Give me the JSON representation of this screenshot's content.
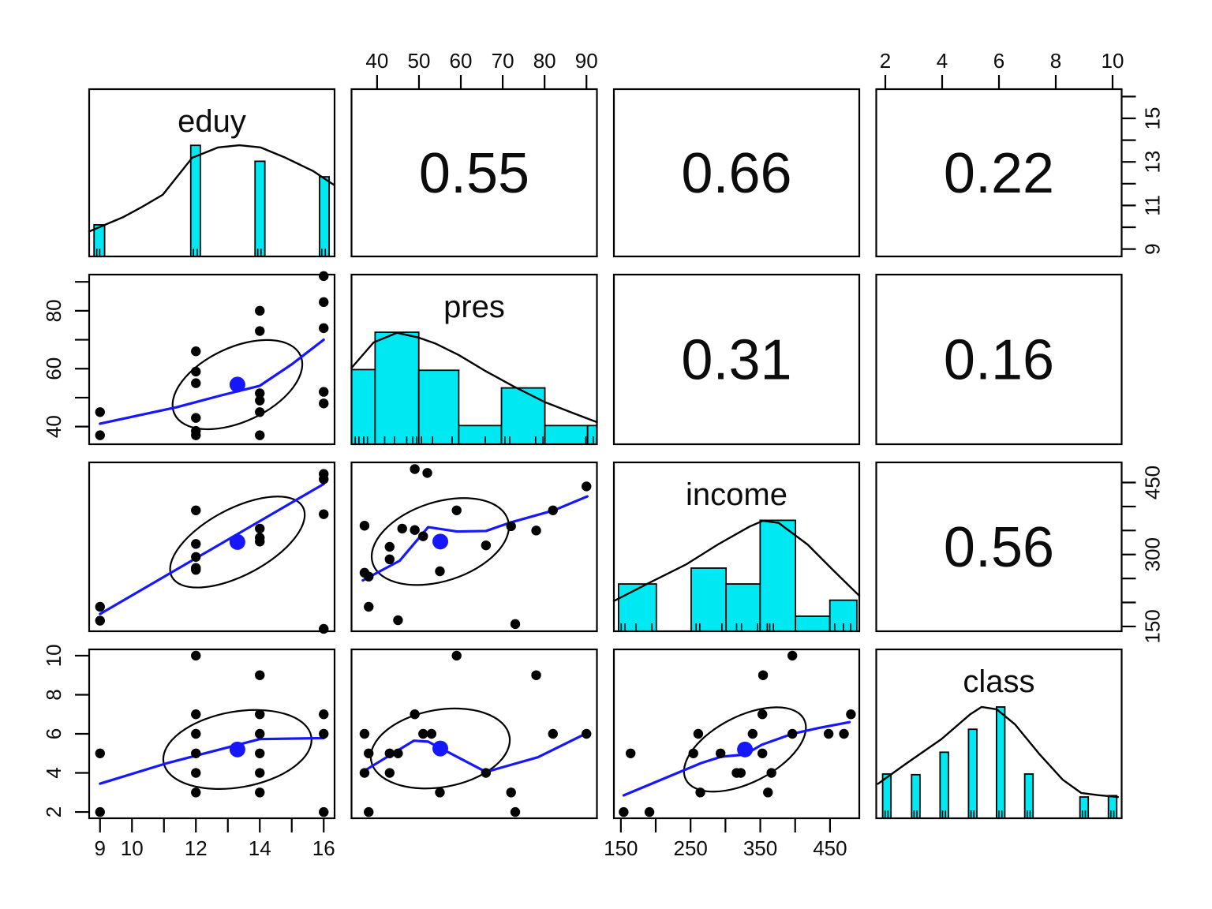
{
  "figure_title": "scatterplot-matrix",
  "chart_data": {
    "type": "scatter",
    "subtype": "scatterplot-matrix-pairs-panels",
    "variables": [
      "eduy",
      "pres",
      "income",
      "class"
    ],
    "diag_labels": {
      "eduy": "eduy",
      "pres": "pres",
      "income": "income",
      "class": "class"
    },
    "correlations": {
      "eduy_pres": "0.55",
      "eduy_income": "0.66",
      "eduy_class": "0.22",
      "pres_income": "0.31",
      "pres_class": "0.16",
      "income_class": "0.56"
    },
    "colors": {
      "histogram_fill": "#00e8f2",
      "histogram_edge": "#000000",
      "density_line": "#000000",
      "smooth_line": "#1616ff",
      "mean_dot": "#1616ff",
      "point": "#000000",
      "ellipse": "#000000",
      "border": "#000000",
      "background": "#ffffff"
    },
    "axis_ranges": {
      "eduy": [
        8.66,
        16.34
      ],
      "pres": [
        33.9,
        92.5
      ],
      "income": [
        140,
        492
      ],
      "class": [
        1.68,
        10.32
      ]
    },
    "edge_axes": [
      {
        "side": "top",
        "col": 1,
        "var": "pres",
        "ticks": [
          40,
          50,
          60,
          70,
          80,
          90
        ],
        "labels": [
          "40",
          "50",
          "60",
          "70",
          "80",
          "90"
        ]
      },
      {
        "side": "top",
        "col": 3,
        "var": "class",
        "ticks": [
          2,
          4,
          6,
          8,
          10
        ],
        "labels": [
          "2",
          "4",
          "6",
          "8",
          "10"
        ]
      },
      {
        "side": "right",
        "row": 0,
        "var": "eduy",
        "ticks": [
          9,
          10,
          11,
          12,
          13,
          14,
          15,
          16
        ],
        "labels": [
          "9",
          "",
          "11",
          "",
          "13",
          "",
          "15",
          ""
        ]
      },
      {
        "side": "right",
        "row": 2,
        "var": "income",
        "ticks": [
          150,
          200,
          250,
          300,
          350,
          400,
          450
        ],
        "labels": [
          "150",
          "",
          "",
          "300",
          "",
          "",
          "450"
        ]
      },
      {
        "side": "left",
        "row": 1,
        "var": "pres",
        "ticks": [
          40,
          50,
          60,
          70,
          80,
          90
        ],
        "labels": [
          "40",
          "",
          "60",
          "",
          "80",
          ""
        ]
      },
      {
        "side": "left",
        "row": 3,
        "var": "class",
        "ticks": [
          2,
          4,
          6,
          8,
          10
        ],
        "labels": [
          "2",
          "4",
          "6",
          "8",
          "10"
        ]
      },
      {
        "side": "bottom",
        "col": 0,
        "var": "eduy",
        "ticks": [
          9,
          10,
          11,
          12,
          13,
          14,
          15,
          16
        ],
        "labels": [
          "9",
          "10",
          "",
          "12",
          "",
          "14",
          "",
          "16"
        ]
      },
      {
        "side": "bottom",
        "col": 2,
        "var": "income",
        "ticks": [
          150,
          200,
          250,
          300,
          350,
          400,
          450
        ],
        "labels": [
          "150",
          "",
          "250",
          "",
          "350",
          "",
          "450"
        ]
      }
    ],
    "diagonal": {
      "eduy": {
        "bars": [
          [
            0.02,
            0.063,
            0.189
          ],
          [
            0.414,
            0.453,
            0.664
          ],
          [
            0.676,
            0.716,
            0.569
          ],
          [
            0.939,
            0.978,
            0.476
          ]
        ],
        "density": [
          [
            0,
            0.149
          ],
          [
            0.14,
            0.236
          ],
          [
            0.22,
            0.3
          ],
          [
            0.3,
            0.369
          ],
          [
            0.42,
            0.59
          ],
          [
            0.526,
            0.652
          ],
          [
            0.612,
            0.665
          ],
          [
            0.698,
            0.652
          ],
          [
            0.8,
            0.59
          ],
          [
            0.912,
            0.511
          ],
          [
            1,
            0.425
          ]
        ],
        "rug": [
          0.031,
          0.043,
          0.425,
          0.44,
          0.687,
          0.7,
          0.948,
          0.962
        ]
      },
      "pres": {
        "bars": [
          [
            0,
            0.096,
            0.44
          ],
          [
            0.096,
            0.274,
            0.66
          ],
          [
            0.274,
            0.437,
            0.436
          ],
          [
            0.437,
            0.611,
            0.11
          ],
          [
            0.611,
            0.788,
            0.332
          ],
          [
            0.788,
            0.962,
            0.11
          ],
          [
            0.962,
            1,
            0.11
          ]
        ],
        "density": [
          [
            0,
            0.45
          ],
          [
            0.09,
            0.6
          ],
          [
            0.185,
            0.657
          ],
          [
            0.27,
            0.63
          ],
          [
            0.34,
            0.595
          ],
          [
            0.437,
            0.526
          ],
          [
            0.544,
            0.433
          ],
          [
            0.662,
            0.34
          ],
          [
            0.79,
            0.247
          ],
          [
            0.908,
            0.181
          ],
          [
            1,
            0.13
          ]
        ],
        "rug": [
          0.015,
          0.03,
          0.05,
          0.065,
          0.135,
          0.175,
          0.225,
          0.25,
          0.265,
          0.285,
          0.33,
          0.41,
          0.545,
          0.625,
          0.645,
          0.75,
          0.78,
          0.955,
          0.985
        ]
      },
      "income": {
        "bars": [
          [
            0.019,
            0.173,
            0.28
          ],
          [
            0.315,
            0.457,
            0.374
          ],
          [
            0.457,
            0.596,
            0.28
          ],
          [
            0.596,
            0.74,
            0.657
          ],
          [
            0.74,
            0.88,
            0.089
          ],
          [
            0.88,
            0.99,
            0.184
          ]
        ],
        "density": [
          [
            0,
            0.179
          ],
          [
            0.135,
            0.28
          ],
          [
            0.296,
            0.397
          ],
          [
            0.424,
            0.514
          ],
          [
            0.553,
            0.62
          ],
          [
            0.607,
            0.654
          ],
          [
            0.671,
            0.642
          ],
          [
            0.789,
            0.514
          ],
          [
            0.896,
            0.358
          ],
          [
            1,
            0.21
          ]
        ],
        "rug": [
          0.03,
          0.045,
          0.09,
          0.155,
          0.335,
          0.35,
          0.44,
          0.5,
          0.52,
          0.585,
          0.625,
          0.635,
          0.65,
          0.74,
          0.9,
          0.935,
          0.965
        ]
      },
      "class": {
        "bars": [
          [
            0.026,
            0.06,
            0.262
          ],
          [
            0.144,
            0.178,
            0.258
          ],
          [
            0.26,
            0.294,
            0.391
          ],
          [
            0.376,
            0.41,
            0.527
          ],
          [
            0.49,
            0.524,
            0.659
          ],
          [
            0.605,
            0.639,
            0.262
          ],
          [
            0.83,
            0.864,
            0.126
          ],
          [
            0.946,
            0.98,
            0.134
          ]
        ],
        "density": [
          [
            0.007,
            0.204
          ],
          [
            0.127,
            0.329
          ],
          [
            0.266,
            0.469
          ],
          [
            0.384,
            0.617
          ],
          [
            0.429,
            0.659
          ],
          [
            0.491,
            0.645
          ],
          [
            0.566,
            0.555
          ],
          [
            0.663,
            0.383
          ],
          [
            0.76,
            0.228
          ],
          [
            0.835,
            0.15
          ],
          [
            0.904,
            0.137
          ],
          [
            0.985,
            0.126
          ]
        ],
        "rug": [
          0.036,
          0.048,
          0.154,
          0.166,
          0.27,
          0.282,
          0.386,
          0.398,
          0.5,
          0.512,
          0.615,
          0.627,
          0.84,
          0.852,
          0.956,
          0.968
        ]
      }
    },
    "scatter": {
      "pres_vs_eduy": {
        "xvar": "eduy",
        "yvar": "pres",
        "points": [
          [
            9,
            45
          ],
          [
            9,
            37
          ],
          [
            12,
            66
          ],
          [
            12,
            59
          ],
          [
            12,
            55
          ],
          [
            12,
            43
          ],
          [
            12,
            38.5
          ],
          [
            12,
            37
          ],
          [
            14,
            80
          ],
          [
            14,
            73
          ],
          [
            14,
            51.5
          ],
          [
            14,
            49
          ],
          [
            14,
            45
          ],
          [
            14,
            37
          ],
          [
            16,
            92
          ],
          [
            16,
            83
          ],
          [
            16,
            74
          ],
          [
            16,
            52
          ],
          [
            16,
            48
          ]
        ],
        "smooth": [
          [
            9,
            41
          ],
          [
            11.4,
            46.7
          ],
          [
            12.8,
            50.8
          ],
          [
            14,
            54.1
          ],
          [
            15,
            61.5
          ],
          [
            16,
            70
          ]
        ],
        "mean": [
          13.3,
          54.5
        ],
        "ellipse": {
          "a": 88,
          "b": 47,
          "angle": -25
        }
      },
      "income_vs_eduy": {
        "xvar": "eduy",
        "yvar": "income",
        "points": [
          [
            9,
            191
          ],
          [
            9,
            162
          ],
          [
            12,
            392
          ],
          [
            12,
            322
          ],
          [
            12,
            295
          ],
          [
            12,
            272
          ],
          [
            12,
            268
          ],
          [
            14,
            354
          ],
          [
            14,
            335
          ],
          [
            14,
            327
          ],
          [
            16,
            468
          ],
          [
            16,
            457
          ],
          [
            16,
            384
          ],
          [
            16,
            145
          ]
        ],
        "smooth": [
          [
            9,
            176
          ],
          [
            16,
            447
          ]
        ],
        "mean": [
          13.3,
          326
        ],
        "ellipse": {
          "a": 94,
          "b": 42,
          "angle": -28
        }
      },
      "class_vs_eduy": {
        "xvar": "eduy",
        "yvar": "class",
        "points": [
          [
            9,
            5
          ],
          [
            9,
            2
          ],
          [
            12,
            10
          ],
          [
            12,
            7
          ],
          [
            12,
            6
          ],
          [
            12,
            5
          ],
          [
            12,
            4
          ],
          [
            12,
            3
          ],
          [
            14,
            9
          ],
          [
            14,
            7
          ],
          [
            14,
            6
          ],
          [
            14,
            5
          ],
          [
            14,
            4
          ],
          [
            14,
            3
          ],
          [
            16,
            7
          ],
          [
            16,
            6
          ],
          [
            16,
            2
          ]
        ],
        "smooth": [
          [
            9,
            3.45
          ],
          [
            11.1,
            4.5
          ],
          [
            14,
            5.73
          ],
          [
            16,
            5.78
          ]
        ],
        "mean": [
          13.3,
          5.2
        ],
        "ellipse": {
          "a": 95,
          "b": 48,
          "angle": -10
        }
      },
      "income_vs_pres": {
        "xvar": "pres",
        "yvar": "income",
        "points": [
          [
            49,
            478
          ],
          [
            52,
            470
          ],
          [
            90,
            442
          ],
          [
            59,
            392
          ],
          [
            82,
            392
          ],
          [
            37,
            360
          ],
          [
            46,
            354
          ],
          [
            49,
            351
          ],
          [
            72,
            359
          ],
          [
            78,
            350
          ],
          [
            51,
            338
          ],
          [
            43,
            316
          ],
          [
            66,
            319
          ],
          [
            43,
            290
          ],
          [
            37,
            262
          ],
          [
            38,
            254
          ],
          [
            55,
            265
          ],
          [
            38,
            191
          ],
          [
            45,
            163
          ],
          [
            73,
            155
          ]
        ],
        "smooth": [
          [
            36.6,
            246
          ],
          [
            45.4,
            287
          ],
          [
            52.2,
            357
          ],
          [
            59.1,
            348
          ],
          [
            66,
            349
          ],
          [
            71.6,
            366
          ],
          [
            82.2,
            392
          ],
          [
            90.2,
            421
          ]
        ],
        "mean": [
          55.1,
          327
        ],
        "ellipse": {
          "a": 90,
          "b": 50,
          "angle": -18
        }
      },
      "class_vs_pres": {
        "xvar": "pres",
        "yvar": "class",
        "points": [
          [
            59,
            10
          ],
          [
            78,
            9
          ],
          [
            49,
            7
          ],
          [
            37,
            6
          ],
          [
            51,
            6
          ],
          [
            53,
            6
          ],
          [
            82,
            6
          ],
          [
            90,
            6
          ],
          [
            38,
            5
          ],
          [
            43,
            5
          ],
          [
            45,
            5
          ],
          [
            37,
            4
          ],
          [
            43,
            4
          ],
          [
            66,
            4
          ],
          [
            55,
            3
          ],
          [
            72,
            3
          ],
          [
            38,
            2
          ],
          [
            73,
            2
          ]
        ],
        "smooth": [
          [
            36.9,
            4.1
          ],
          [
            48.8,
            5.65
          ],
          [
            52.2,
            5.6
          ],
          [
            66,
            4.05
          ],
          [
            78.4,
            4.8
          ],
          [
            90.2,
            6.05
          ]
        ],
        "mean": [
          55.1,
          5.25
        ],
        "ellipse": {
          "a": 89,
          "b": 49,
          "angle": -10
        }
      },
      "class_vs_income": {
        "xvar": "income",
        "yvar": "class",
        "points": [
          [
            396,
            10
          ],
          [
            354,
            9
          ],
          [
            353,
            7
          ],
          [
            480,
            7
          ],
          [
            261,
            6
          ],
          [
            339,
            6
          ],
          [
            396,
            6
          ],
          [
            448,
            6
          ],
          [
            470,
            6
          ],
          [
            164,
            5
          ],
          [
            254,
            5
          ],
          [
            293,
            5
          ],
          [
            353,
            5
          ],
          [
            316,
            4
          ],
          [
            322,
            4
          ],
          [
            366,
            4
          ],
          [
            264,
            3
          ],
          [
            361,
            3
          ],
          [
            154,
            2
          ],
          [
            191,
            2
          ]
        ],
        "smooth": [
          [
            154,
            2.85
          ],
          [
            265,
            4.5
          ],
          [
            294,
            4.83
          ],
          [
            328,
            4.94
          ],
          [
            352,
            5.44
          ],
          [
            396,
            6.0
          ],
          [
            434,
            6.3
          ],
          [
            478,
            6.6
          ]
        ],
        "mean": [
          328,
          5.2
        ],
        "ellipse": {
          "a": 84,
          "b": 42,
          "angle": -27
        }
      }
    }
  }
}
